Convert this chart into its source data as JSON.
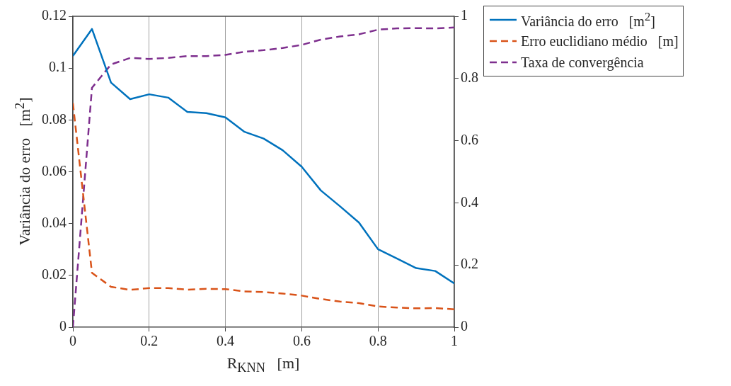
{
  "chart_data": {
    "type": "line",
    "xlabel": "R$_{KNN}$   [m]",
    "ylabel": "Variância do erro   [m$^{2}$]",
    "x": [
      0,
      0.05,
      0.1,
      0.15,
      0.2,
      0.25,
      0.3,
      0.35,
      0.4,
      0.45,
      0.5,
      0.55,
      0.6,
      0.65,
      0.7,
      0.75,
      0.8,
      0.85,
      0.9,
      0.95,
      1
    ],
    "series": [
      {
        "name": "Variância do erro   [m$^{2}$]",
        "color": "#0072bd",
        "line_style": "solid",
        "values": [
          0.1047,
          0.1151,
          0.0944,
          0.088,
          0.0899,
          0.0886,
          0.0831,
          0.0826,
          0.081,
          0.0754,
          0.0728,
          0.0683,
          0.0619,
          0.0528,
          0.0467,
          0.0404,
          0.0301,
          0.0265,
          0.0228,
          0.0217,
          0.0169
        ]
      },
      {
        "name": "Erro euclidiano médio   [m]",
        "color": "#d95319",
        "line_style": "dashed",
        "values": [
          0.0865,
          0.021,
          0.0156,
          0.0144,
          0.0151,
          0.0151,
          0.0145,
          0.0148,
          0.0147,
          0.0138,
          0.0136,
          0.013,
          0.0122,
          0.0109,
          0.0099,
          0.0093,
          0.008,
          0.0076,
          0.0073,
          0.0074,
          0.0069
        ]
      },
      {
        "name": "Taxa de convergência",
        "color": "#7e2f8e",
        "line_style": "dashed",
        "axis": "y2",
        "values": [
          0,
          0.77,
          0.845,
          0.866,
          0.863,
          0.866,
          0.872,
          0.872,
          0.876,
          0.886,
          0.891,
          0.898,
          0.908,
          0.925,
          0.935,
          0.942,
          0.957,
          0.961,
          0.962,
          0.961,
          0.964
        ]
      }
    ],
    "xlim": [
      0,
      1
    ],
    "xticks": [
      0,
      0.2,
      0.4,
      0.6,
      0.8,
      1
    ],
    "ylim": [
      0,
      0.12
    ],
    "yticks": [
      0,
      0.02,
      0.04,
      0.06,
      0.08,
      0.1,
      0.12
    ],
    "y2lim": [
      0,
      1
    ],
    "y2ticks": [
      0,
      0.2,
      0.4,
      0.6,
      0.8,
      1
    ],
    "grid": "x",
    "legend": "top right",
    "marker": "none"
  }
}
